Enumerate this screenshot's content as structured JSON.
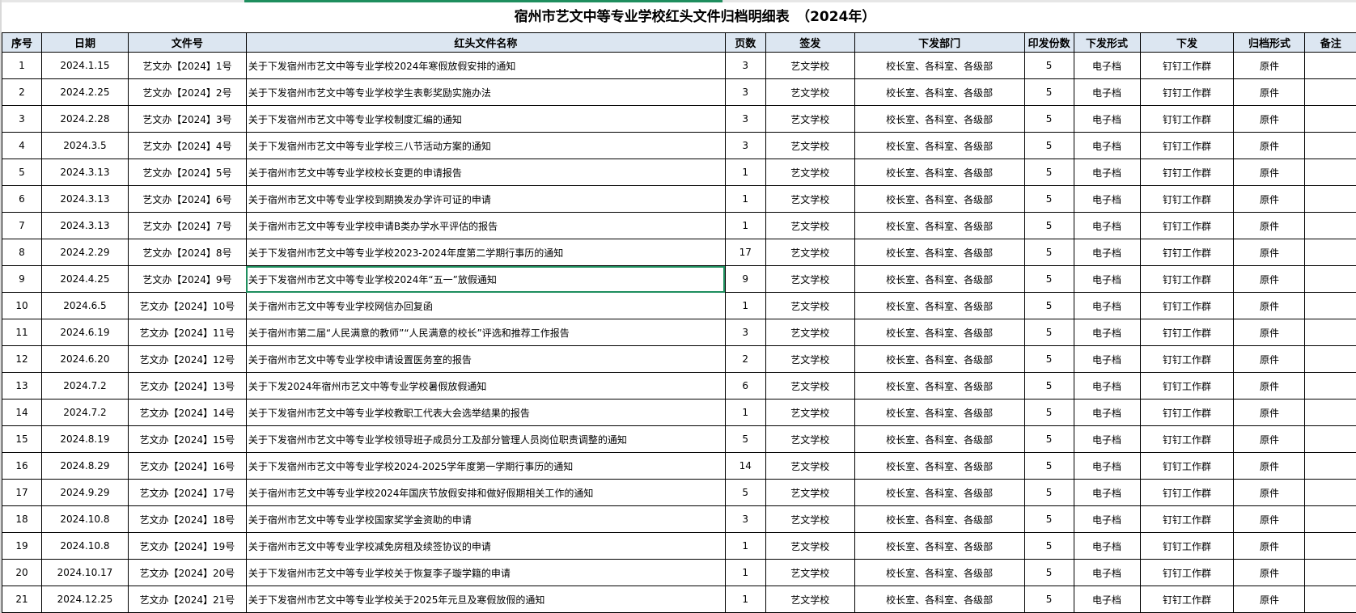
{
  "title": "宿州市艺文中等专业学校红头文件归档明细表　（2024年）",
  "headers": [
    "序号",
    "日期",
    "文件号",
    "红头文件名称",
    "页数",
    "签发",
    "下发部门",
    "印发份数",
    "下发形式",
    "下发",
    "归档形式",
    "备注"
  ],
  "selected_row": 9,
  "colors": {
    "header_bg": "#dce6f1",
    "selection": "#1e8e5e"
  },
  "rows": [
    {
      "no": "1",
      "date": "2024.1.15",
      "doc": "艺文办【2024】1号",
      "name": "关于下发宿州市艺文中等专业学校2024年寒假放假安排的通知",
      "pages": "3",
      "signer": "艺文学校",
      "dept": "校长室、各科室、各级部",
      "copies": "5",
      "form": "电子档",
      "channel": "钉钉工作群",
      "archive": "原件",
      "note": ""
    },
    {
      "no": "2",
      "date": "2024.2.25",
      "doc": "艺文办【2024】2号",
      "name": "关于下发宿州市艺文中等专业学校学生表彰奖励实施办法",
      "pages": "3",
      "signer": "艺文学校",
      "dept": "校长室、各科室、各级部",
      "copies": "5",
      "form": "电子档",
      "channel": "钉钉工作群",
      "archive": "原件",
      "note": ""
    },
    {
      "no": "3",
      "date": "2024.2.28",
      "doc": "艺文办【2024】3号",
      "name": "关于下发宿州市艺文中等专业学校制度汇编的通知",
      "pages": "3",
      "signer": "艺文学校",
      "dept": "校长室、各科室、各级部",
      "copies": "5",
      "form": "电子档",
      "channel": "钉钉工作群",
      "archive": "原件",
      "note": ""
    },
    {
      "no": "4",
      "date": "2024.3.5",
      "doc": "艺文办【2024】4号",
      "name": "关于下发宿州市艺文中等专业学校三八节活动方案的通知",
      "pages": "3",
      "signer": "艺文学校",
      "dept": "校长室、各科室、各级部",
      "copies": "5",
      "form": "电子档",
      "channel": "钉钉工作群",
      "archive": "原件",
      "note": ""
    },
    {
      "no": "5",
      "date": "2024.3.13",
      "doc": "艺文办【2024】5号",
      "name": "关于宿州市艺文中等专业学校校长变更的申请报告",
      "pages": "1",
      "signer": "艺文学校",
      "dept": "校长室、各科室、各级部",
      "copies": "5",
      "form": "电子档",
      "channel": "钉钉工作群",
      "archive": "原件",
      "note": ""
    },
    {
      "no": "6",
      "date": "2024.3.13",
      "doc": "艺文办【2024】6号",
      "name": "关于宿州市艺文中等专业学校到期换发办学许可证的申请",
      "pages": "1",
      "signer": "艺文学校",
      "dept": "校长室、各科室、各级部",
      "copies": "5",
      "form": "电子档",
      "channel": "钉钉工作群",
      "archive": "原件",
      "note": ""
    },
    {
      "no": "7",
      "date": "2024.3.13",
      "doc": "艺文办【2024】7号",
      "name": "关于宿州市艺文中等专业学校申请B类办学水平评估的报告",
      "pages": "1",
      "signer": "艺文学校",
      "dept": "校长室、各科室、各级部",
      "copies": "5",
      "form": "电子档",
      "channel": "钉钉工作群",
      "archive": "原件",
      "note": ""
    },
    {
      "no": "8",
      "date": "2024.2.29",
      "doc": "艺文办【2024】8号",
      "name": "关于下发宿州市艺文中等专业学校2023-2024年度第二学期行事历的通知",
      "pages": "17",
      "signer": "艺文学校",
      "dept": "校长室、各科室、各级部",
      "copies": "5",
      "form": "电子档",
      "channel": "钉钉工作群",
      "archive": "原件",
      "note": ""
    },
    {
      "no": "9",
      "date": "2024.4.25",
      "doc": "艺文办【2024】9号",
      "name": "关于下发宿州市艺文中等专业学校2024年“五一”放假通知",
      "pages": "9",
      "signer": "艺文学校",
      "dept": "校长室、各科室、各级部",
      "copies": "5",
      "form": "电子档",
      "channel": "钉钉工作群",
      "archive": "原件",
      "note": ""
    },
    {
      "no": "10",
      "date": "2024.6.5",
      "doc": "艺文办【2024】10号",
      "name": "关于宿州市艺文中等专业学校网信办回复函",
      "pages": "1",
      "signer": "艺文学校",
      "dept": "校长室、各科室、各级部",
      "copies": "5",
      "form": "电子档",
      "channel": "钉钉工作群",
      "archive": "原件",
      "note": ""
    },
    {
      "no": "11",
      "date": "2024.6.19",
      "doc": "艺文办【2024】11号",
      "name": "关于宿州市第二届“人民满意的教师”“人民满意的校长”评选和推荐工作报告",
      "pages": "3",
      "signer": "艺文学校",
      "dept": "校长室、各科室、各级部",
      "copies": "5",
      "form": "电子档",
      "channel": "钉钉工作群",
      "archive": "原件",
      "note": ""
    },
    {
      "no": "12",
      "date": "2024.6.20",
      "doc": "艺文办【2024】12号",
      "name": "关于宿州市艺文中等专业学校申请设置医务室的报告",
      "pages": "2",
      "signer": "艺文学校",
      "dept": "校长室、各科室、各级部",
      "copies": "5",
      "form": "电子档",
      "channel": "钉钉工作群",
      "archive": "原件",
      "note": ""
    },
    {
      "no": "13",
      "date": "2024.7.2",
      "doc": "艺文办【2024】13号",
      "name": "关于下发2024年宿州市艺文中等专业学校暑假放假通知",
      "pages": "6",
      "signer": "艺文学校",
      "dept": "校长室、各科室、各级部",
      "copies": "5",
      "form": "电子档",
      "channel": "钉钉工作群",
      "archive": "原件",
      "note": ""
    },
    {
      "no": "14",
      "date": "2024.7.2",
      "doc": "艺文办【2024】14号",
      "name": "关于下发宿州市艺文中等专业学校教职工代表大会选举结果的报告",
      "pages": "1",
      "signer": "艺文学校",
      "dept": "校长室、各科室、各级部",
      "copies": "5",
      "form": "电子档",
      "channel": "钉钉工作群",
      "archive": "原件",
      "note": ""
    },
    {
      "no": "15",
      "date": "2024.8.19",
      "doc": "艺文办【2024】15号",
      "name": "关于下发宿州市艺文中等专业学校领导班子成员分工及部分管理人员岗位职责调整的通知",
      "pages": "5",
      "signer": "艺文学校",
      "dept": "校长室、各科室、各级部",
      "copies": "5",
      "form": "电子档",
      "channel": "钉钉工作群",
      "archive": "原件",
      "note": ""
    },
    {
      "no": "16",
      "date": "2024.8.29",
      "doc": "艺文办【2024】16号",
      "name": "关于下发宿州市艺文中等专业学校2024-2025学年度第一学期行事历的通知",
      "pages": "14",
      "signer": "艺文学校",
      "dept": "校长室、各科室、各级部",
      "copies": "5",
      "form": "电子档",
      "channel": "钉钉工作群",
      "archive": "原件",
      "note": ""
    },
    {
      "no": "17",
      "date": "2024.9.29",
      "doc": "艺文办【2024】17号",
      "name": "关于宿州市艺文中等专业学校2024年国庆节放假安排和做好假期相关工作的通知",
      "pages": "5",
      "signer": "艺文学校",
      "dept": "校长室、各科室、各级部",
      "copies": "5",
      "form": "电子档",
      "channel": "钉钉工作群",
      "archive": "原件",
      "note": ""
    },
    {
      "no": "18",
      "date": "2024.10.8",
      "doc": "艺文办【2024】18号",
      "name": "关于宿州市艺文中等专业学校国家奖学金资助的申请",
      "pages": "3",
      "signer": "艺文学校",
      "dept": "校长室、各科室、各级部",
      "copies": "5",
      "form": "电子档",
      "channel": "钉钉工作群",
      "archive": "原件",
      "note": ""
    },
    {
      "no": "19",
      "date": "2024.10.8",
      "doc": "艺文办【2024】19号",
      "name": "关于宿州市艺文中等专业学校减免房租及续签协议的申请",
      "pages": "1",
      "signer": "艺文学校",
      "dept": "校长室、各科室、各级部",
      "copies": "5",
      "form": "电子档",
      "channel": "钉钉工作群",
      "archive": "原件",
      "note": ""
    },
    {
      "no": "20",
      "date": "2024.10.17",
      "doc": "艺文办【2024】20号",
      "name": "关于下发宿州市艺文中等专业学校关于恢复李子璇学籍的申请",
      "pages": "1",
      "signer": "艺文学校",
      "dept": "校长室、各科室、各级部",
      "copies": "5",
      "form": "电子档",
      "channel": "钉钉工作群",
      "archive": "原件",
      "note": ""
    },
    {
      "no": "21",
      "date": "2024.12.25",
      "doc": "艺文办【2024】21号",
      "name": "关于下发宿州市艺文中等专业学校关于2025年元旦及寒假放假的通知",
      "pages": "1",
      "signer": "艺文学校",
      "dept": "校长室、各科室、各级部",
      "copies": "5",
      "form": "电子档",
      "channel": "钉钉工作群",
      "archive": "原件",
      "note": ""
    }
  ]
}
